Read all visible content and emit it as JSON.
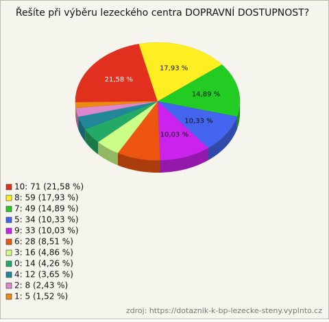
{
  "chart_data": {
    "type": "pie",
    "title": "Řešíte při výběru lezeckého centra DOPRAVNÍ DOSTUPNOST?",
    "categories": [
      "10: 71 (21,58 %)",
      "8: 59 (17,93 %)",
      "7: 49 (14,89 %)",
      "5: 34 (10,33 %)",
      "9: 33 (10,03 %)",
      "6: 28 (8,51 %)",
      "3: 16 (4,86 %)",
      "0: 14 (4,26 %)",
      "4: 12 (3,65 %)",
      "2: 8 (2,43 %)",
      "1: 5 (1,52 %)"
    ],
    "values": [
      21.58,
      17.93,
      14.89,
      10.33,
      10.03,
      8.51,
      4.86,
      4.26,
      3.65,
      2.43,
      1.52
    ],
    "value_labels": [
      "21,58 %",
      "17,93 %",
      "14,89 %",
      "10,33 %",
      "10,03 %",
      null,
      null,
      null,
      null,
      null,
      null
    ],
    "colors": [
      "#e2301e",
      "#ffee22",
      "#22cc22",
      "#4466ee",
      "#cc22ee",
      "#ee5511",
      "#ccff88",
      "#22aa66",
      "#228899",
      "#dd88cc",
      "#ee8811"
    ],
    "source": "zdroj: https://dotaznik-k-bp-lezecke-steny.vyplnto.cz"
  }
}
